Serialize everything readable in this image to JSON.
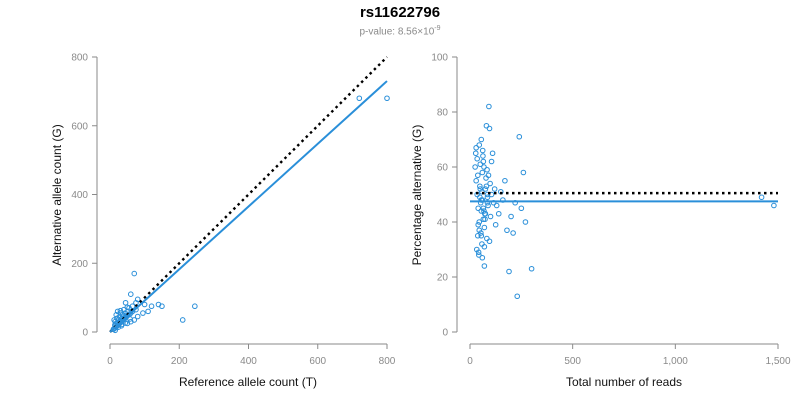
{
  "header": {
    "title": "rs11622796",
    "pvalue_prefix": "p-value: 8.56×10",
    "pvalue_exponent": "-9"
  },
  "colors": {
    "points": "#2a8fd9",
    "fit_line": "#2a8fd9",
    "reference_line": "#000000",
    "axis": "#8a8a8a"
  },
  "chart_data": [
    {
      "type": "scatter",
      "title": "",
      "xlabel": "Reference allele count (T)",
      "ylabel": "Alternative allele count (G)",
      "xlim": [
        0,
        800
      ],
      "ylim": [
        0,
        800
      ],
      "xticks": [
        0,
        200,
        400,
        600,
        800
      ],
      "yticks": [
        0,
        200,
        400,
        600,
        800
      ],
      "xtick_labels": [
        "0",
        "200",
        "400",
        "600",
        "800"
      ],
      "ytick_labels": [
        "0",
        "200",
        "400",
        "600",
        "800"
      ],
      "reference_line": {
        "style": "dotted",
        "x": [
          0,
          800
        ],
        "y": [
          0,
          800
        ]
      },
      "fit_line": {
        "x": [
          0,
          800
        ],
        "y": [
          0,
          730
        ]
      },
      "points": {
        "x": [
          10,
          12,
          15,
          18,
          20,
          22,
          25,
          28,
          30,
          32,
          35,
          38,
          40,
          42,
          45,
          48,
          50,
          55,
          60,
          65,
          14,
          16,
          24,
          26,
          34,
          36,
          44,
          46,
          12,
          20,
          28,
          36,
          44,
          52,
          18,
          30,
          22,
          40,
          15,
          25,
          35,
          50,
          60,
          70,
          80,
          55,
          65,
          75,
          95,
          110,
          120,
          140,
          150,
          70,
          80,
          100,
          60,
          75,
          45,
          210,
          245,
          720,
          800,
          30,
          50,
          40,
          15,
          22,
          33,
          58
        ],
        "y": [
          8,
          10,
          12,
          15,
          18,
          20,
          22,
          25,
          28,
          30,
          32,
          35,
          38,
          40,
          42,
          45,
          48,
          50,
          55,
          60,
          20,
          24,
          14,
          30,
          22,
          40,
          26,
          46,
          35,
          40,
          45,
          50,
          55,
          60,
          50,
          55,
          60,
          65,
          30,
          35,
          40,
          25,
          30,
          35,
          45,
          70,
          75,
          85,
          55,
          60,
          75,
          80,
          75,
          170,
          95,
          80,
          110,
          65,
          85,
          35,
          75,
          680,
          680,
          62,
          72,
          48,
          5,
          28,
          18,
          38
        ]
      }
    },
    {
      "type": "scatter",
      "title": "",
      "xlabel": "Total number of reads",
      "ylabel": "Percentage alternative (G)",
      "xlim": [
        0,
        1500
      ],
      "ylim": [
        0,
        100
      ],
      "xticks": [
        0,
        500,
        1000,
        1500
      ],
      "yticks": [
        0,
        20,
        40,
        60,
        80,
        100
      ],
      "xtick_labels": [
        "0",
        "500",
        "1,000",
        "1,500"
      ],
      "ytick_labels": [
        "0",
        "20",
        "40",
        "60",
        "80",
        "100"
      ],
      "reference_line": {
        "style": "dotted",
        "x": [
          0,
          1500
        ],
        "y": [
          50.5,
          50.5
        ]
      },
      "fit_line": {
        "x": [
          0,
          1500
        ],
        "y": [
          47.5,
          47.5
        ]
      },
      "points": {
        "x": [
          25,
          30,
          35,
          40,
          45,
          50,
          55,
          60,
          65,
          70,
          75,
          80,
          85,
          90,
          95,
          100,
          28,
          38,
          48,
          58,
          68,
          78,
          88,
          98,
          33,
          43,
          53,
          63,
          73,
          83,
          30,
          40,
          50,
          60,
          70,
          80,
          35,
          45,
          55,
          65,
          75,
          85,
          42,
          52,
          62,
          72,
          82,
          92,
          38,
          48,
          58,
          68,
          105,
          110,
          115,
          120,
          125,
          130,
          140,
          150,
          160,
          170,
          180,
          190,
          200,
          210,
          220,
          230,
          240,
          250,
          260,
          270,
          300,
          95,
          105,
          60,
          70,
          85,
          55,
          1480,
          1420,
          45,
          55,
          65
        ],
        "y": [
          60,
          55,
          50,
          45,
          40,
          52,
          48,
          58,
          62,
          38,
          43,
          53,
          47,
          57,
          33,
          42,
          65,
          35,
          49,
          51,
          44,
          56,
          46,
          54,
          30,
          28,
          36,
          64,
          41,
          59,
          67,
          39,
          61,
          48,
          24,
          75,
          63,
          37,
          70,
          45,
          52,
          50,
          29,
          47,
          66,
          43,
          34,
          82,
          57,
          53,
          32,
          60,
          62,
          65,
          47,
          52,
          39,
          46,
          43,
          51,
          48,
          55,
          37,
          22,
          42,
          36,
          47,
          13,
          71,
          45,
          58,
          40,
          23,
          74,
          50,
          27,
          31,
          49,
          35,
          46,
          49,
          68,
          44,
          41
        ]
      }
    }
  ]
}
